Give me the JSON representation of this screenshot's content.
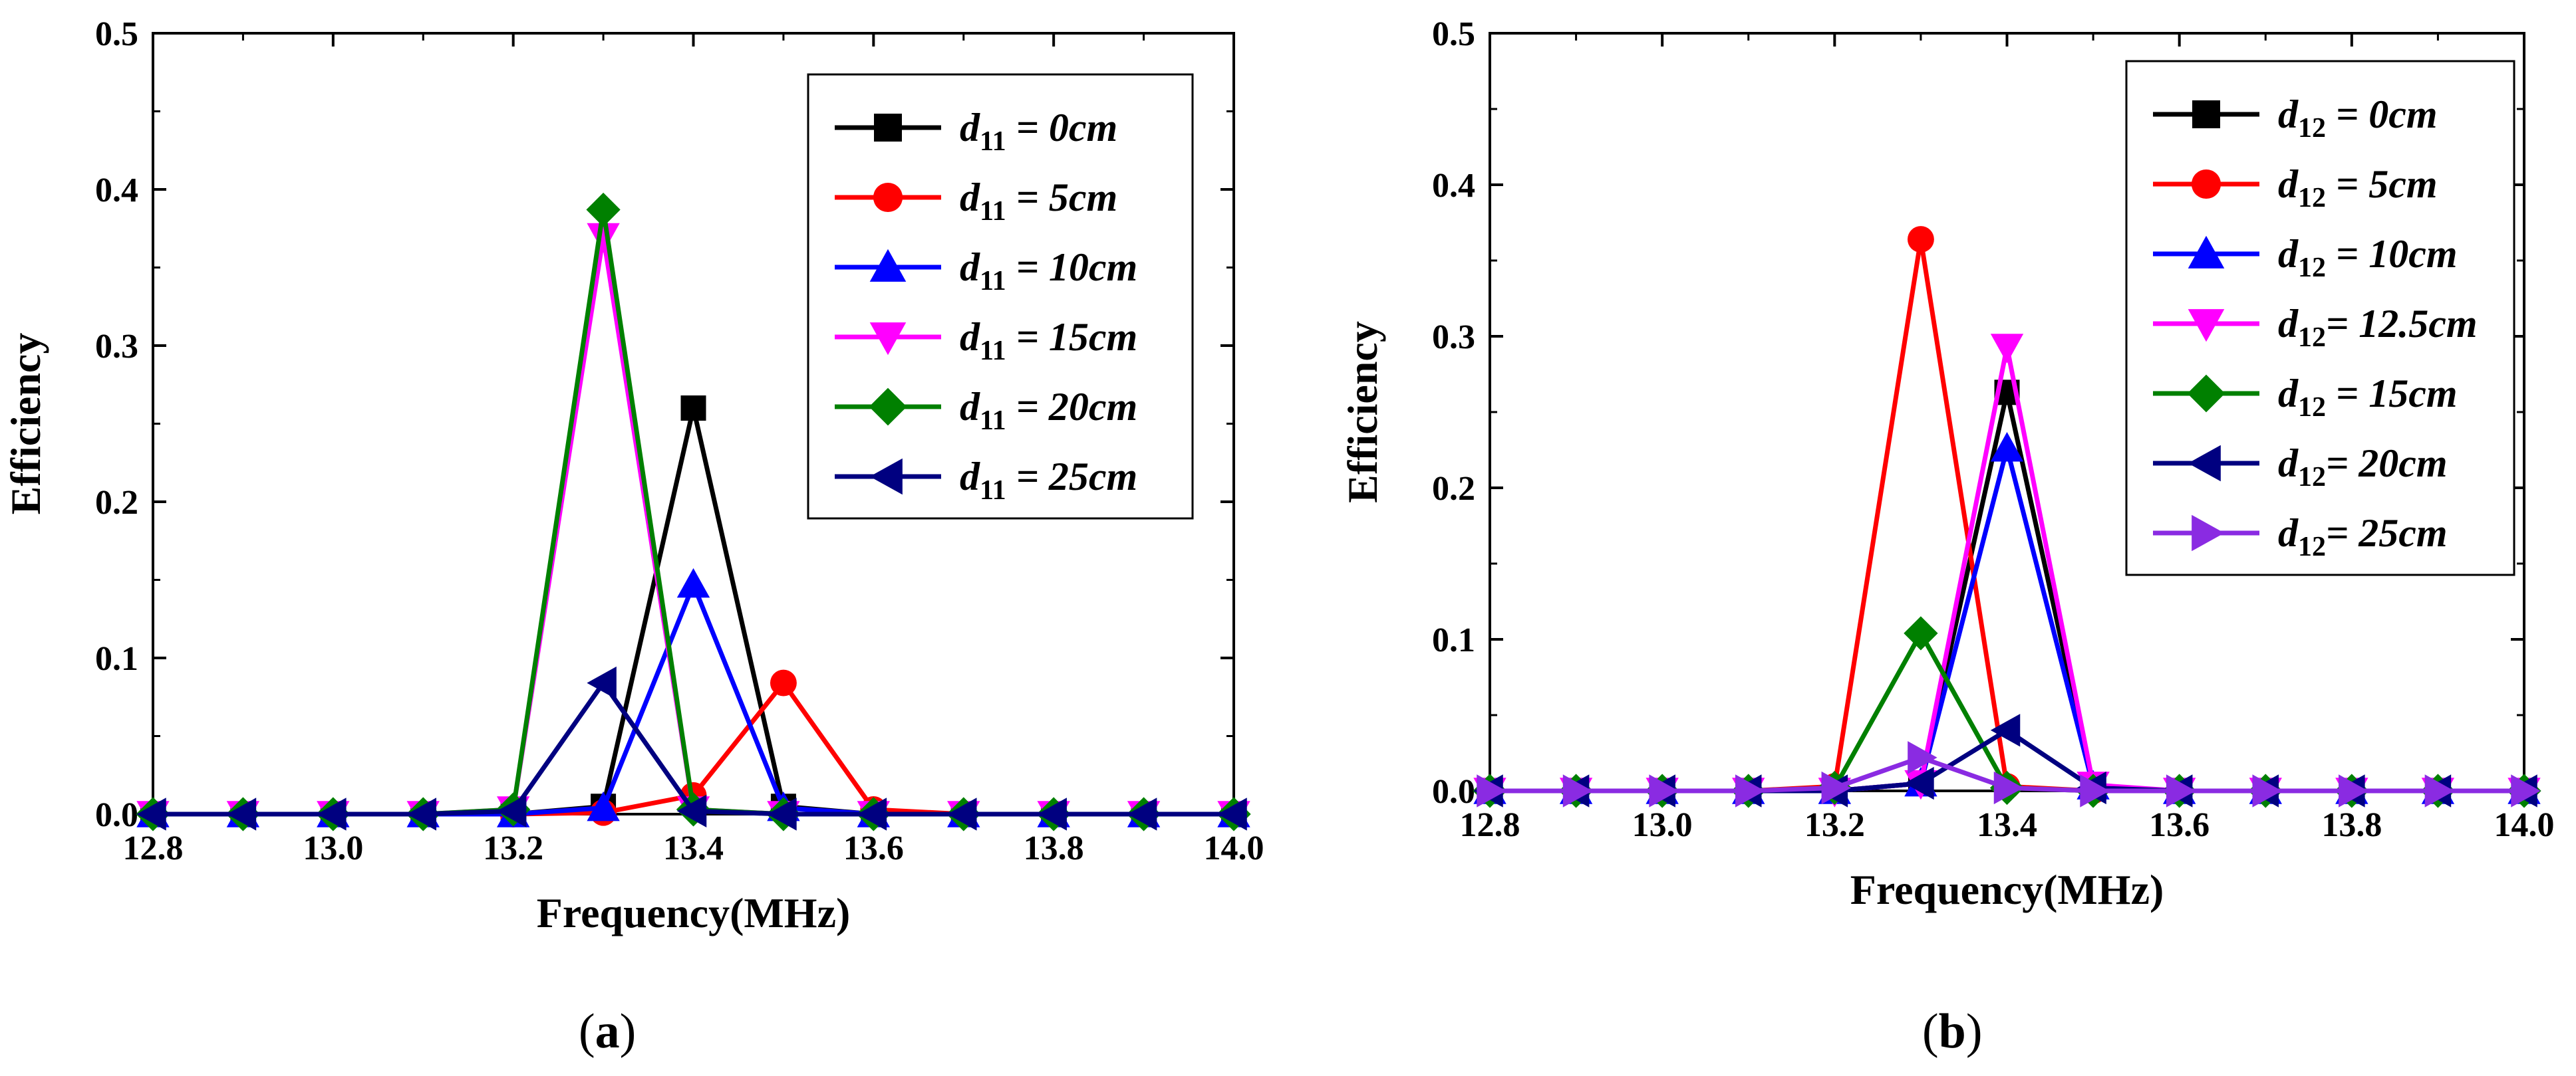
{
  "colors": {
    "black": "#000000",
    "red": "#ff0000",
    "blue": "#0000ff",
    "magenta": "#ff00ff",
    "green": "#008000",
    "navy": "#000080",
    "purple": "#8a2be2"
  },
  "panels": [
    {
      "id": "a",
      "label_open": "(",
      "label": "a",
      "label_close": ")"
    },
    {
      "id": "b",
      "label_open": "(",
      "label": "b",
      "label_close": ")"
    }
  ],
  "chart_data": [
    {
      "type": "line",
      "panel": "a",
      "xlabel": "Frequency(MHz)",
      "ylabel": "Efficiency",
      "xlim": [
        12.8,
        14.0
      ],
      "ylim": [
        0,
        0.5
      ],
      "xticks": [
        "12.8",
        "13.0",
        "13.2",
        "13.4",
        "13.6",
        "13.8",
        "14.0"
      ],
      "yticks": [
        "0.0",
        "0.1",
        "0.2",
        "0.3",
        "0.4",
        "0.5"
      ],
      "legend_position": "top-right",
      "x": [
        12.8,
        12.9,
        13.0,
        13.1,
        13.2,
        13.3,
        13.4,
        13.5,
        13.6,
        13.7,
        13.8,
        13.9,
        14.0
      ],
      "series": [
        {
          "name": "d11 = 0cm",
          "var": "d",
          "sub": "11",
          "rest": " = 0cm",
          "color": "#000000",
          "marker": "square",
          "values": [
            0,
            0,
            0,
            0,
            0,
            0.005,
            0.26,
            0.005,
            0,
            0,
            0,
            0,
            0
          ]
        },
        {
          "name": "d11 = 5cm",
          "var": "d",
          "sub": "11",
          "rest": " = 5cm",
          "color": "#ff0000",
          "marker": "circle",
          "values": [
            0,
            0,
            0,
            0,
            0,
            0.001,
            0.012,
            0.084,
            0.003,
            0,
            0,
            0,
            0
          ]
        },
        {
          "name": "d11 = 10cm",
          "var": "d",
          "sub": "11",
          "rest": " = 10cm",
          "color": "#0000ff",
          "marker": "triangle-up",
          "values": [
            0,
            0,
            0,
            0,
            0,
            0.004,
            0.147,
            0.004,
            0,
            0,
            0,
            0,
            0
          ]
        },
        {
          "name": "d11 = 15cm",
          "var": "d",
          "sub": "11",
          "rest": " = 15cm",
          "color": "#ff00ff",
          "marker": "triangle-down",
          "values": [
            0,
            0,
            0,
            0,
            0.003,
            0.37,
            0.003,
            0,
            0,
            0,
            0,
            0,
            0
          ]
        },
        {
          "name": "d11 = 20cm",
          "var": "d",
          "sub": "11",
          "rest": " = 20cm",
          "color": "#008000",
          "marker": "diamond",
          "values": [
            0,
            0,
            0,
            0,
            0.003,
            0.387,
            0.003,
            0,
            0,
            0,
            0,
            0,
            0
          ]
        },
        {
          "name": "d11 = 25cm",
          "var": "d",
          "sub": "11",
          "rest": " = 25cm",
          "color": "#000080",
          "marker": "triangle-left",
          "values": [
            0,
            0,
            0,
            0,
            0.002,
            0.084,
            0.002,
            0,
            0,
            0,
            0,
            0,
            0
          ]
        }
      ]
    },
    {
      "type": "line",
      "panel": "b",
      "xlabel": "Frequency(MHz)",
      "ylabel": "Efficiency",
      "xlim": [
        12.8,
        14.0
      ],
      "ylim": [
        0,
        0.5
      ],
      "xticks": [
        "12.8",
        "13.0",
        "13.2",
        "13.4",
        "13.6",
        "13.8",
        "14.0"
      ],
      "yticks": [
        "0.0",
        "0.1",
        "0.2",
        "0.3",
        "0.4",
        "0.5"
      ],
      "legend_position": "top-right",
      "x": [
        12.8,
        12.9,
        13.0,
        13.1,
        13.2,
        13.3,
        13.4,
        13.5,
        13.6,
        13.7,
        13.8,
        13.9,
        14.0
      ],
      "series": [
        {
          "name": "d12 = 0cm",
          "var": "d",
          "sub": "12",
          "rest": " = 0cm",
          "color": "#000000",
          "marker": "square",
          "values": [
            0,
            0,
            0,
            0,
            0,
            0.005,
            0.263,
            0.003,
            0,
            0,
            0,
            0,
            0
          ]
        },
        {
          "name": "d12 = 5cm",
          "var": "d",
          "sub": "12",
          "rest": " = 5cm",
          "color": "#ff0000",
          "marker": "circle",
          "values": [
            0,
            0,
            0,
            0,
            0.003,
            0.364,
            0.003,
            0,
            0,
            0,
            0,
            0,
            0
          ]
        },
        {
          "name": "d12 = 10cm",
          "var": "d",
          "sub": "12",
          "rest": " = 10cm",
          "color": "#0000ff",
          "marker": "triangle-up",
          "values": [
            0,
            0,
            0,
            0,
            0,
            0.005,
            0.226,
            0.003,
            0,
            0,
            0,
            0,
            0
          ]
        },
        {
          "name": "d12= 12.5cm",
          "var": "d",
          "sub": "12",
          "rest": "= 12.5cm",
          "color": "#ff00ff",
          "marker": "triangle-down",
          "values": [
            0,
            0,
            0,
            0,
            0,
            0.005,
            0.293,
            0.004,
            0,
            0,
            0,
            0,
            0
          ]
        },
        {
          "name": "d12 = 15cm",
          "var": "d",
          "sub": "12",
          "rest": " = 15cm",
          "color": "#008000",
          "marker": "diamond",
          "values": [
            0,
            0,
            0,
            0,
            0.002,
            0.104,
            0.002,
            0,
            0,
            0,
            0,
            0,
            0
          ]
        },
        {
          "name": "d12= 20cm",
          "var": "d",
          "sub": "12",
          "rest": "= 20cm",
          "color": "#000080",
          "marker": "triangle-left",
          "values": [
            0,
            0,
            0,
            0,
            0,
            0.005,
            0.04,
            0.002,
            0,
            0,
            0,
            0,
            0
          ]
        },
        {
          "name": "d12= 25cm",
          "var": "d",
          "sub": "12",
          "rest": "= 25cm",
          "color": "#8a2be2",
          "marker": "triangle-right",
          "values": [
            0,
            0,
            0,
            0,
            0.002,
            0.022,
            0.002,
            0,
            0,
            0,
            0,
            0,
            0
          ]
        }
      ]
    }
  ]
}
